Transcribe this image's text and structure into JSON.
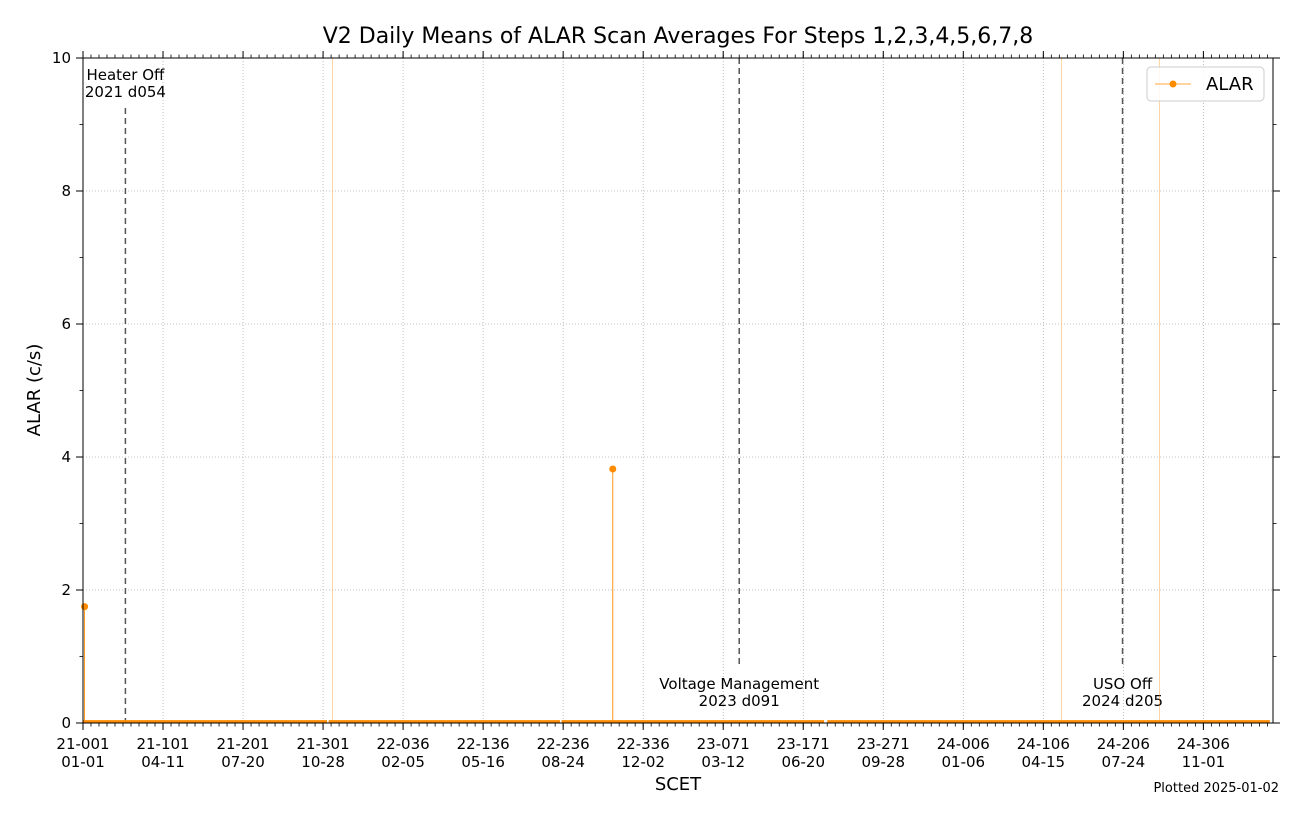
{
  "chart_data": {
    "type": "line",
    "title": "V2 Daily Means of ALAR Scan Averages For Steps 1,2,3,4,5,6,7,8",
    "xlabel": "SCET",
    "ylabel": "ALAR (c/s)",
    "ylim": [
      0,
      10
    ],
    "xlim": [
      "2021-01-01",
      "2025-01-27"
    ],
    "grid": true,
    "legend_placement": "top-right",
    "x_tick_labels": [
      {
        "date": "2021-01-01",
        "line1": "21-001",
        "line2": "01-01"
      },
      {
        "date": "2021-04-11",
        "line1": "21-101",
        "line2": "04-11"
      },
      {
        "date": "2021-07-20",
        "line1": "21-201",
        "line2": "07-20"
      },
      {
        "date": "2021-10-28",
        "line1": "21-301",
        "line2": "10-28"
      },
      {
        "date": "2022-02-05",
        "line1": "22-036",
        "line2": "02-05"
      },
      {
        "date": "2022-05-16",
        "line1": "22-136",
        "line2": "05-16"
      },
      {
        "date": "2022-08-24",
        "line1": "22-236",
        "line2": "08-24"
      },
      {
        "date": "2022-12-02",
        "line1": "22-336",
        "line2": "12-02"
      },
      {
        "date": "2023-03-12",
        "line1": "23-071",
        "line2": "03-12"
      },
      {
        "date": "2023-06-20",
        "line1": "23-171",
        "line2": "06-20"
      },
      {
        "date": "2023-09-28",
        "line1": "23-271",
        "line2": "09-28"
      },
      {
        "date": "2024-01-06",
        "line1": "24-006",
        "line2": "01-06"
      },
      {
        "date": "2024-04-15",
        "line1": "24-106",
        "line2": "04-15"
      },
      {
        "date": "2024-07-24",
        "line1": "24-206",
        "line2": "07-24"
      },
      {
        "date": "2024-11-01",
        "line1": "24-306",
        "line2": "11-01"
      }
    ],
    "y_ticks": [
      0,
      2,
      4,
      6,
      8,
      10
    ],
    "series": [
      {
        "name": "ALAR",
        "color": "#ff8c00",
        "baseline_value": 0.02,
        "baseline_segments": [
          [
            "2021-01-01",
            "2021-11-02"
          ],
          [
            "2021-11-04",
            "2022-08-20"
          ],
          [
            "2022-08-22",
            "2023-07-16"
          ],
          [
            "2023-07-20",
            "2025-01-23"
          ]
        ],
        "spikes": [
          {
            "date": "2021-01-03",
            "value": 1.75,
            "marker": true
          },
          {
            "date": "2021-11-09",
            "value": 10.0,
            "marker": false
          },
          {
            "date": "2022-10-25",
            "value": 3.82,
            "marker": true
          },
          {
            "date": "2024-05-08",
            "value": 10.0,
            "marker": false
          },
          {
            "date": "2024-09-07",
            "value": 10.0,
            "marker": false
          }
        ]
      }
    ],
    "events": [
      {
        "date": "2021-02-23",
        "line1": "Heater Off",
        "line2": "2021 d054",
        "label_pos": "top"
      },
      {
        "date": "2023-04-01",
        "line1": "Voltage Management",
        "line2": "2023 d091",
        "label_pos": "bottom"
      },
      {
        "date": "2024-07-23",
        "line1": "USO Off",
        "line2": "2024 d205",
        "label_pos": "bottom"
      }
    ]
  },
  "footer": {
    "plotted": "Plotted 2025-01-02"
  }
}
